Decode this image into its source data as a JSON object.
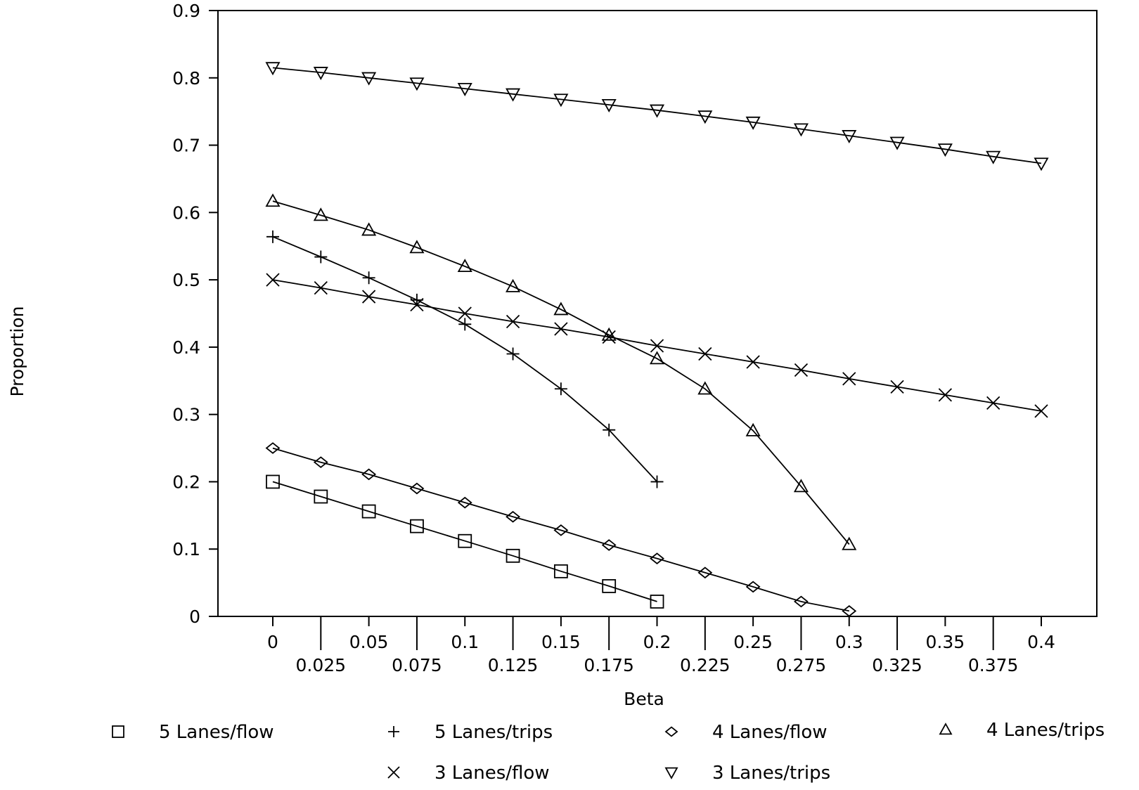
{
  "chart_data": {
    "type": "line",
    "xlabel": "Beta",
    "ylabel": "Proportion",
    "xlim": [
      -0.05,
      0.43
    ],
    "ylim": [
      0,
      0.9
    ],
    "x_ticks_upper": [
      "0",
      "0.05",
      "0.1",
      "0.15",
      "0.2",
      "0.25",
      "0.3",
      "0.35",
      "0.4"
    ],
    "x_ticks_lower": [
      "0.025",
      "0.075",
      "0.125",
      "0.175",
      "0.225",
      "0.275",
      "0.325",
      "0.375"
    ],
    "y_ticks": [
      "0",
      "0.1",
      "0.2",
      "0.3",
      "0.4",
      "0.5",
      "0.6",
      "0.7",
      "0.8",
      "0.9"
    ],
    "grid": false,
    "legend_position": "bottom",
    "series": [
      {
        "name": "5 Lanes/flow",
        "marker": "square",
        "x": [
          0,
          0.025,
          0.05,
          0.075,
          0.1,
          0.125,
          0.15,
          0.175,
          0.2
        ],
        "y": [
          0.2,
          0.178,
          0.156,
          0.134,
          0.112,
          0.09,
          0.067,
          0.045,
          0.022
        ]
      },
      {
        "name": "5 Lanes/trips",
        "marker": "plus",
        "x": [
          0,
          0.025,
          0.05,
          0.075,
          0.1,
          0.125,
          0.15,
          0.175,
          0.2
        ],
        "y": [
          0.564,
          0.534,
          0.503,
          0.47,
          0.434,
          0.39,
          0.338,
          0.277,
          0.2
        ]
      },
      {
        "name": "4 Lanes/flow",
        "marker": "diamond",
        "x": [
          0,
          0.025,
          0.05,
          0.075,
          0.1,
          0.125,
          0.15,
          0.175,
          0.2,
          0.225,
          0.25,
          0.275,
          0.3
        ],
        "y": [
          0.25,
          0.229,
          0.211,
          0.19,
          0.169,
          0.148,
          0.128,
          0.106,
          0.086,
          0.065,
          0.044,
          0.022,
          0.008
        ]
      },
      {
        "name": "4 Lanes/trips",
        "marker": "triangle-up",
        "x": [
          0,
          0.025,
          0.05,
          0.075,
          0.1,
          0.125,
          0.15,
          0.175,
          0.2,
          0.225,
          0.25,
          0.275,
          0.3
        ],
        "y": [
          0.617,
          0.596,
          0.574,
          0.548,
          0.52,
          0.49,
          0.456,
          0.418,
          0.383,
          0.338,
          0.276,
          0.193,
          0.107
        ]
      },
      {
        "name": "3 Lanes/flow",
        "marker": "x",
        "x": [
          0,
          0.025,
          0.05,
          0.075,
          0.1,
          0.125,
          0.15,
          0.175,
          0.2,
          0.225,
          0.25,
          0.275,
          0.3,
          0.325,
          0.35,
          0.375,
          0.4
        ],
        "y": [
          0.5,
          0.488,
          0.475,
          0.463,
          0.45,
          0.438,
          0.427,
          0.415,
          0.402,
          0.39,
          0.378,
          0.366,
          0.353,
          0.341,
          0.329,
          0.317,
          0.305
        ]
      },
      {
        "name": "3 Lanes/trips",
        "marker": "triangle-down",
        "x": [
          0,
          0.025,
          0.05,
          0.075,
          0.1,
          0.125,
          0.15,
          0.175,
          0.2,
          0.225,
          0.25,
          0.275,
          0.3,
          0.325,
          0.35,
          0.375,
          0.4
        ],
        "y": [
          0.815,
          0.808,
          0.8,
          0.792,
          0.784,
          0.776,
          0.768,
          0.76,
          0.752,
          0.743,
          0.734,
          0.724,
          0.714,
          0.704,
          0.694,
          0.683,
          0.673
        ]
      }
    ]
  }
}
